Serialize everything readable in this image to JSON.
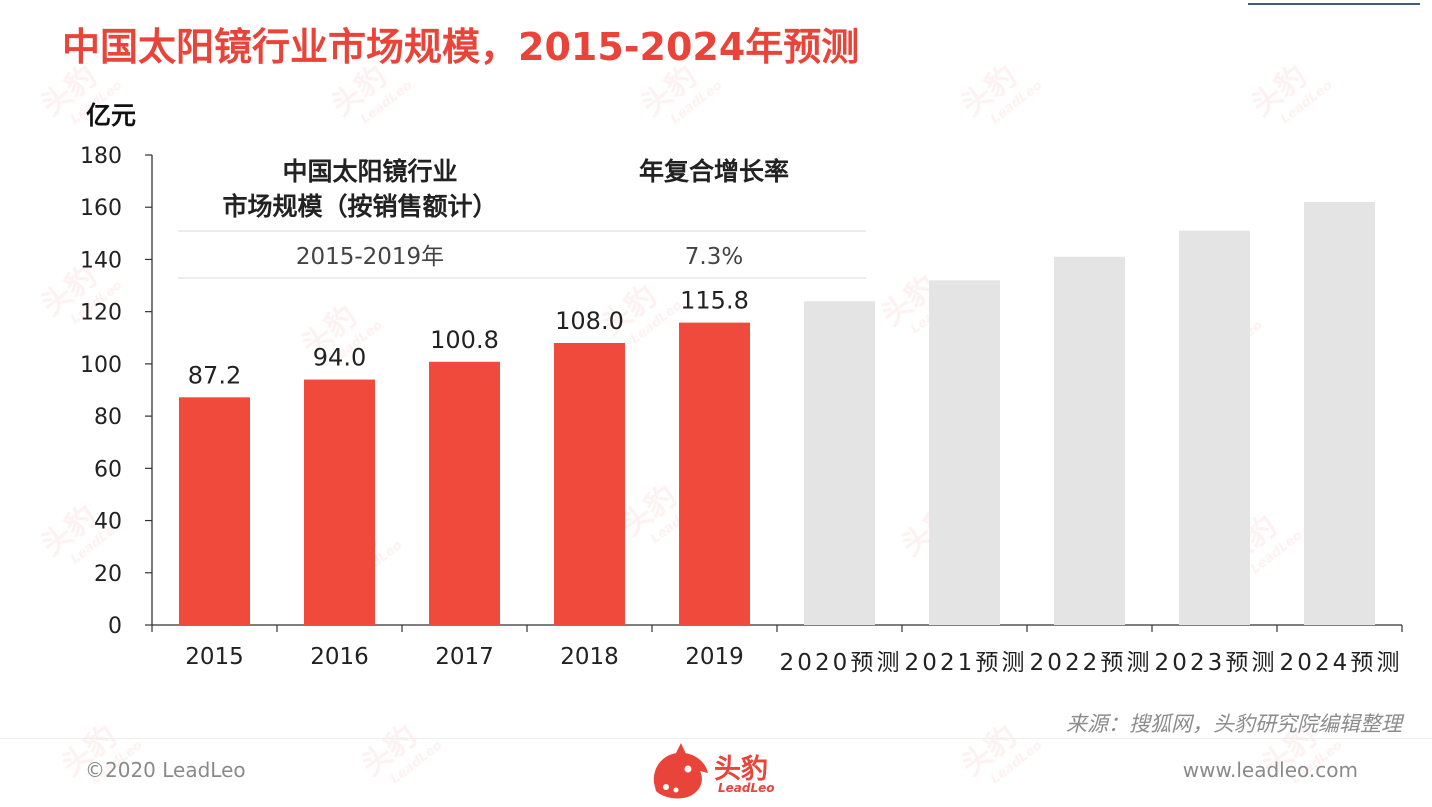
{
  "title": "中国太阳镜行业市场规模，2015-2024年预测",
  "watermark": {
    "cn": "头豹",
    "en": "LeadLeo"
  },
  "table": {
    "col1_header_line1": "中国太阳镜行业",
    "col1_header_line2": "市场规模（按销售额计）",
    "col2_header": "年复合增长率",
    "row_period": "2015-2019年",
    "row_cagr": "7.3%"
  },
  "source": "来源：搜狐网，头豹研究院编辑整理",
  "footer": {
    "copyright": "©2020 LeadLeo",
    "website": "www.leadleo.com"
  },
  "logo": {
    "cn": "头豹",
    "en": "LeadLeo",
    "icon": "leopard-head-icon"
  },
  "colors": {
    "actual": "#f04a3c",
    "forecast": "#e4e4e4",
    "title": "#e8443a"
  },
  "chart_data": {
    "type": "bar",
    "ylabel": "亿元",
    "ylim": [
      0,
      180
    ],
    "yticks": [
      0,
      20,
      40,
      60,
      80,
      100,
      120,
      140,
      160,
      180
    ],
    "categories": [
      "2015",
      "2016",
      "2017",
      "2018",
      "2019",
      "2020预测",
      "2021预测",
      "2022预测",
      "2023预测",
      "2024预测"
    ],
    "values": [
      87.2,
      94.0,
      100.8,
      108.0,
      115.8,
      124.0,
      132.0,
      141.0,
      151.0,
      162.0
    ],
    "labels": [
      "87.2",
      "94.0",
      "100.8",
      "108.0",
      "115.8",
      "",
      "",
      "",
      "",
      ""
    ],
    "forecast": [
      false,
      false,
      false,
      false,
      false,
      true,
      true,
      true,
      true,
      true
    ],
    "grid": false,
    "legend": "none"
  }
}
